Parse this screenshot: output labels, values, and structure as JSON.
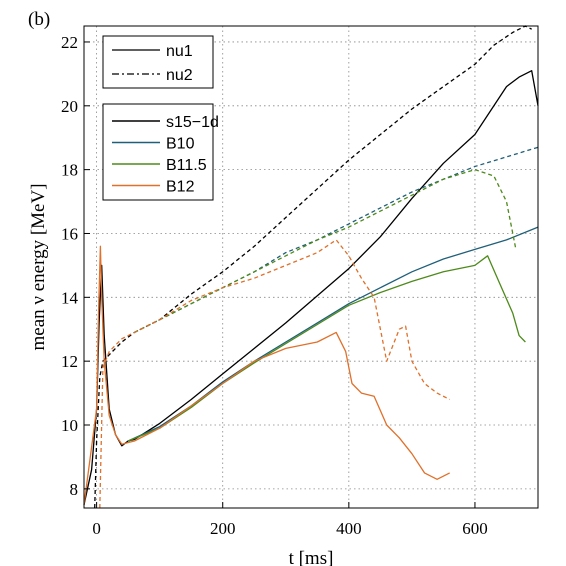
{
  "panel_label": "(b)",
  "chart_data": {
    "type": "line",
    "xlabel": "t [ms]",
    "ylabel": "mean ν energy [MeV]",
    "xlim": [
      -20,
      700
    ],
    "ylim": [
      7.4,
      22.5
    ],
    "xticks": [
      0,
      200,
      400,
      600
    ],
    "yticks": [
      8,
      10,
      12,
      14,
      16,
      18,
      20,
      22
    ],
    "grid": true,
    "legend_placement": "top-left",
    "legend_styles": [
      {
        "label": "nu1",
        "dash": "solid"
      },
      {
        "label": "nu2",
        "dash": "dashdot"
      }
    ],
    "legend_models": [
      {
        "label": "s15−1d",
        "color": "#000000"
      },
      {
        "label": "B10",
        "color": "#1f5f7a"
      },
      {
        "label": "B11.5",
        "color": "#4d8a1a"
      },
      {
        "label": "B12",
        "color": "#e0702a"
      }
    ],
    "series": [
      {
        "model": "s15−1d",
        "style": "nu1",
        "color": "#000000",
        "x": [
          -20,
          -8,
          0,
          4,
          8,
          12,
          20,
          30,
          40,
          50,
          60,
          80,
          100,
          150,
          200,
          250,
          300,
          350,
          400,
          450,
          500,
          550,
          600,
          650,
          670,
          690,
          700
        ],
        "y": [
          7.5,
          8.6,
          10.5,
          13.2,
          15.0,
          12.8,
          10.5,
          9.7,
          9.35,
          9.5,
          9.55,
          9.8,
          10.05,
          10.8,
          11.6,
          12.4,
          13.2,
          14.05,
          14.9,
          15.9,
          17.1,
          18.2,
          19.1,
          20.6,
          20.9,
          21.1,
          20.0
        ]
      },
      {
        "model": "s15−1d",
        "style": "nu2",
        "color": "#000000",
        "x": [
          -3,
          0,
          5,
          10,
          20,
          40,
          60,
          100,
          150,
          200,
          250,
          300,
          350,
          400,
          450,
          500,
          550,
          600,
          630,
          660,
          680,
          690
        ],
        "y": [
          7.4,
          9.5,
          11.5,
          12.0,
          12.2,
          12.6,
          12.9,
          13.3,
          14.1,
          14.8,
          15.6,
          16.5,
          17.4,
          18.3,
          19.1,
          19.9,
          20.6,
          21.3,
          21.9,
          22.3,
          22.5,
          22.4
        ]
      },
      {
        "model": "B10",
        "style": "nu1",
        "color": "#1f5f7a",
        "x": [
          50,
          100,
          150,
          200,
          250,
          300,
          350,
          400,
          450,
          500,
          550,
          600,
          650,
          700
        ],
        "y": [
          9.5,
          9.95,
          10.6,
          11.35,
          12.0,
          12.6,
          13.2,
          13.8,
          14.3,
          14.8,
          15.2,
          15.5,
          15.8,
          16.2
        ]
      },
      {
        "model": "B10",
        "style": "nu2",
        "color": "#1f5f7a",
        "x": [
          60,
          100,
          150,
          200,
          250,
          300,
          350,
          400,
          450,
          500,
          550,
          600,
          650,
          700
        ],
        "y": [
          12.9,
          13.3,
          13.8,
          14.3,
          14.8,
          15.4,
          15.8,
          16.3,
          16.8,
          17.3,
          17.7,
          18.1,
          18.4,
          18.7
        ]
      },
      {
        "model": "B11.5",
        "style": "nu1",
        "color": "#4d8a1a",
        "x": [
          50,
          100,
          150,
          200,
          250,
          300,
          350,
          400,
          450,
          500,
          550,
          600,
          620,
          640,
          660,
          670,
          680
        ],
        "y": [
          9.5,
          9.9,
          10.55,
          11.3,
          11.95,
          12.55,
          13.15,
          13.75,
          14.15,
          14.5,
          14.8,
          15.0,
          15.3,
          14.4,
          13.5,
          12.8,
          12.6
        ]
      },
      {
        "model": "B11.5",
        "style": "nu2",
        "color": "#4d8a1a",
        "x": [
          60,
          100,
          150,
          200,
          250,
          300,
          350,
          400,
          450,
          500,
          550,
          600,
          630,
          650,
          665
        ],
        "y": [
          12.9,
          13.3,
          13.8,
          14.3,
          14.8,
          15.3,
          15.8,
          16.2,
          16.7,
          17.2,
          17.7,
          18.0,
          17.8,
          17.0,
          15.5
        ]
      },
      {
        "model": "B12",
        "style": "nu1",
        "color": "#e0702a",
        "x": [
          -20,
          0,
          3,
          6,
          8,
          12,
          20,
          30,
          40,
          60,
          100,
          150,
          200,
          250,
          300,
          350,
          380,
          395,
          405,
          420,
          440,
          460,
          480,
          500,
          520,
          540,
          560
        ],
        "y": [
          7.5,
          10.5,
          13.5,
          15.6,
          14.0,
          12.0,
          10.3,
          9.7,
          9.4,
          9.5,
          9.9,
          10.6,
          11.3,
          12.0,
          12.4,
          12.6,
          12.9,
          12.3,
          11.3,
          11.0,
          10.9,
          10.0,
          9.6,
          9.1,
          8.5,
          8.3,
          8.5
        ]
      },
      {
        "model": "B12",
        "style": "nu2",
        "color": "#e0702a",
        "x": [
          5,
          10,
          20,
          40,
          60,
          100,
          150,
          200,
          250,
          300,
          350,
          380,
          400,
          420,
          440,
          460,
          480,
          490,
          500,
          520,
          540,
          560
        ],
        "y": [
          7.4,
          11.8,
          12.3,
          12.7,
          12.9,
          13.3,
          13.9,
          14.3,
          14.6,
          15.0,
          15.4,
          15.8,
          15.3,
          14.6,
          14.0,
          12.0,
          13.0,
          13.1,
          12.0,
          11.3,
          11.0,
          10.8
        ]
      }
    ]
  }
}
